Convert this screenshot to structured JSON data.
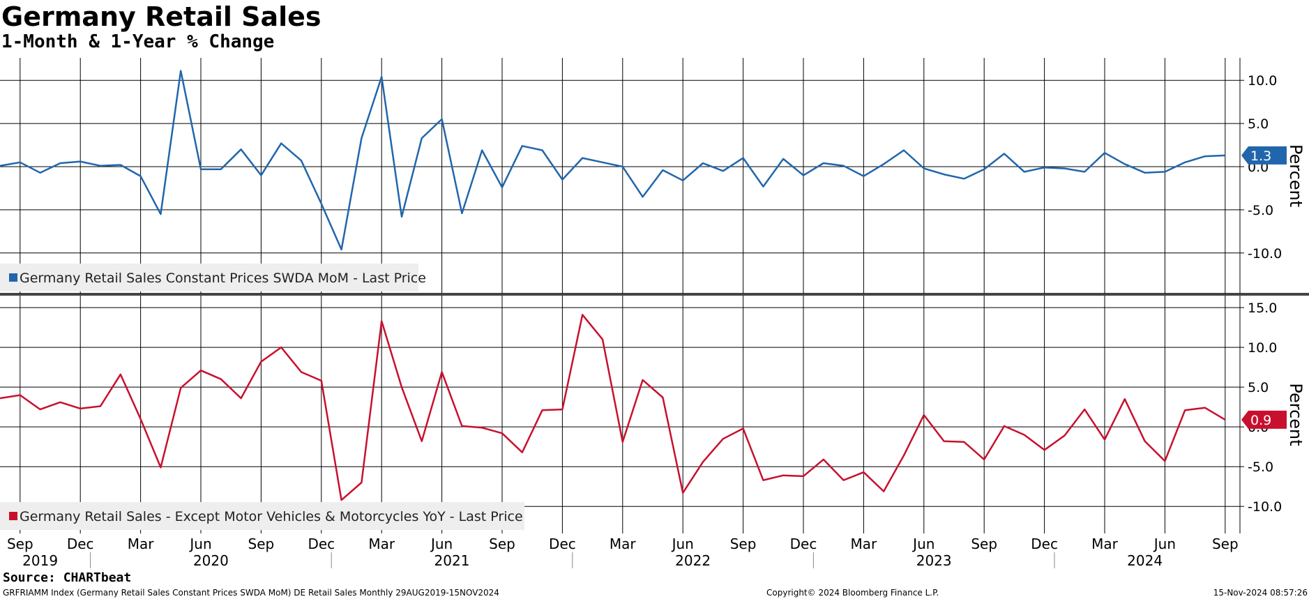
{
  "title": "Germany Retail Sales",
  "subtitle": "1-Month & 1-Year % Change",
  "source": "Source: CHARTbeat",
  "footer": {
    "left": "GRFRIAMM Index (Germany Retail Sales Constant Prices SWDA MoM) DE Retail Sales  Monthly 29AUG2019-15NOV2024",
    "center": "Copyright© 2024 Bloomberg Finance L.P.",
    "right": "15-Nov-2024 08:57:26"
  },
  "chart_data": [
    {
      "type": "line",
      "ylabel": "Percent",
      "yticks": [
        "10.0",
        "5.0",
        "0.0",
        "-5.0",
        "-10.0"
      ],
      "ytick_values": [
        10,
        5,
        0,
        -5,
        -10
      ],
      "ylim": [
        -14.7,
        12.6
      ],
      "grid": true,
      "legend_position": "bottom-left",
      "last_value_label": "1.3",
      "color": "#2166ac",
      "series": [
        {
          "name": "Germany Retail Sales Constant Prices SWDA MoM - Last Price",
          "x": [
            "2019-08",
            "2019-09",
            "2019-10",
            "2019-11",
            "2019-12",
            "2020-01",
            "2020-02",
            "2020-03",
            "2020-04",
            "2020-05",
            "2020-06",
            "2020-07",
            "2020-08",
            "2020-09",
            "2020-10",
            "2020-11",
            "2020-12",
            "2021-01",
            "2021-02",
            "2021-03",
            "2021-04",
            "2021-05",
            "2021-06",
            "2021-07",
            "2021-08",
            "2021-09",
            "2021-10",
            "2021-11",
            "2021-12",
            "2022-01",
            "2022-02",
            "2022-03",
            "2022-04",
            "2022-05",
            "2022-06",
            "2022-07",
            "2022-08",
            "2022-09",
            "2022-10",
            "2022-11",
            "2022-12",
            "2023-01",
            "2023-02",
            "2023-03",
            "2023-04",
            "2023-05",
            "2023-06",
            "2023-07",
            "2023-08",
            "2023-09",
            "2023-10",
            "2023-11",
            "2023-12",
            "2024-01",
            "2024-02",
            "2024-03",
            "2024-04",
            "2024-05",
            "2024-06",
            "2024-07",
            "2024-08",
            "2024-09"
          ],
          "values": [
            0.1,
            0.5,
            -0.7,
            0.4,
            0.6,
            0.1,
            0.2,
            -1.1,
            -5.5,
            11.1,
            -0.3,
            -0.3,
            2.0,
            -1.0,
            2.7,
            0.7,
            -4.3,
            -9.6,
            3.3,
            10.4,
            -5.8,
            3.3,
            5.5,
            -5.4,
            1.9,
            -2.4,
            2.4,
            1.9,
            -1.5,
            1.0,
            0.5,
            0.0,
            -3.5,
            -0.4,
            -1.6,
            0.4,
            -0.5,
            1.0,
            -2.3,
            0.9,
            -1.0,
            0.4,
            0.1,
            -1.1,
            0.3,
            1.9,
            -0.2,
            -0.9,
            -1.4,
            -0.3,
            1.5,
            -0.6,
            -0.1,
            -0.2,
            -0.6,
            1.6,
            0.3,
            -0.7,
            -0.6,
            0.5,
            1.2,
            1.3
          ]
        }
      ]
    },
    {
      "type": "line",
      "ylabel": "Percent",
      "yticks": [
        "15.0",
        "10.0",
        "5.0",
        "0.0",
        "-5.0",
        "-10.0"
      ],
      "ytick_values": [
        15,
        10,
        5,
        0,
        -5,
        -10
      ],
      "ylim": [
        -13.4,
        16.5
      ],
      "grid": true,
      "legend_position": "bottom-left",
      "last_value_label": "0.9",
      "color": "#c8102e",
      "series": [
        {
          "name": "Germany Retail Sales - Except Motor Vehicles & Motorcycles YoY - Last Price",
          "x": [
            "2019-08",
            "2019-09",
            "2019-10",
            "2019-11",
            "2019-12",
            "2020-01",
            "2020-02",
            "2020-03",
            "2020-04",
            "2020-05",
            "2020-06",
            "2020-07",
            "2020-08",
            "2020-09",
            "2020-10",
            "2020-11",
            "2020-12",
            "2021-01",
            "2021-02",
            "2021-03",
            "2021-04",
            "2021-05",
            "2021-06",
            "2021-07",
            "2021-08",
            "2021-09",
            "2021-10",
            "2021-11",
            "2021-12",
            "2022-01",
            "2022-02",
            "2022-03",
            "2022-04",
            "2022-05",
            "2022-06",
            "2022-07",
            "2022-08",
            "2022-09",
            "2022-10",
            "2022-11",
            "2022-12",
            "2023-01",
            "2023-02",
            "2023-03",
            "2023-04",
            "2023-05",
            "2023-06",
            "2023-07",
            "2023-08",
            "2023-09",
            "2023-10",
            "2023-11",
            "2023-12",
            "2024-01",
            "2024-02",
            "2024-03",
            "2024-04",
            "2024-05",
            "2024-06",
            "2024-07",
            "2024-08",
            "2024-09"
          ],
          "values": [
            3.6,
            4.0,
            2.2,
            3.1,
            2.3,
            2.6,
            6.6,
            1.0,
            -5.1,
            4.9,
            7.1,
            6.0,
            3.6,
            8.2,
            10.0,
            6.9,
            5.8,
            -9.2,
            -7.0,
            13.3,
            5.0,
            -1.8,
            6.9,
            0.1,
            -0.1,
            -0.8,
            -3.2,
            2.1,
            2.2,
            14.1,
            11.0,
            -1.9,
            5.9,
            3.7,
            -8.3,
            -4.4,
            -1.5,
            -0.2,
            -6.7,
            -6.1,
            -6.2,
            -4.1,
            -6.7,
            -5.7,
            -8.1,
            -3.6,
            1.5,
            -1.8,
            -1.9,
            -4.1,
            0.1,
            -1.0,
            -2.9,
            -1.1,
            2.2,
            -1.6,
            3.5,
            -1.8,
            -4.3,
            2.1,
            2.4,
            0.9
          ]
        }
      ]
    }
  ],
  "x_axis": {
    "month_labels": [
      {
        "label": "Sep",
        "date": "2019-09"
      },
      {
        "label": "Dec",
        "date": "2019-12"
      },
      {
        "label": "Mar",
        "date": "2020-03"
      },
      {
        "label": "Jun",
        "date": "2020-06"
      },
      {
        "label": "Sep",
        "date": "2020-09"
      },
      {
        "label": "Dec",
        "date": "2020-12"
      },
      {
        "label": "Mar",
        "date": "2021-03"
      },
      {
        "label": "Jun",
        "date": "2021-06"
      },
      {
        "label": "Sep",
        "date": "2021-09"
      },
      {
        "label": "Dec",
        "date": "2021-12"
      },
      {
        "label": "Mar",
        "date": "2022-03"
      },
      {
        "label": "Jun",
        "date": "2022-06"
      },
      {
        "label": "Sep",
        "date": "2022-09"
      },
      {
        "label": "Dec",
        "date": "2022-12"
      },
      {
        "label": "Mar",
        "date": "2023-03"
      },
      {
        "label": "Jun",
        "date": "2023-06"
      },
      {
        "label": "Sep",
        "date": "2023-09"
      },
      {
        "label": "Dec",
        "date": "2023-12"
      },
      {
        "label": "Mar",
        "date": "2024-03"
      },
      {
        "label": "Jun",
        "date": "2024-06"
      },
      {
        "label": "Sep",
        "date": "2024-09"
      }
    ],
    "year_labels": [
      "2019",
      "2020",
      "2021",
      "2022",
      "2023",
      "2024"
    ]
  }
}
